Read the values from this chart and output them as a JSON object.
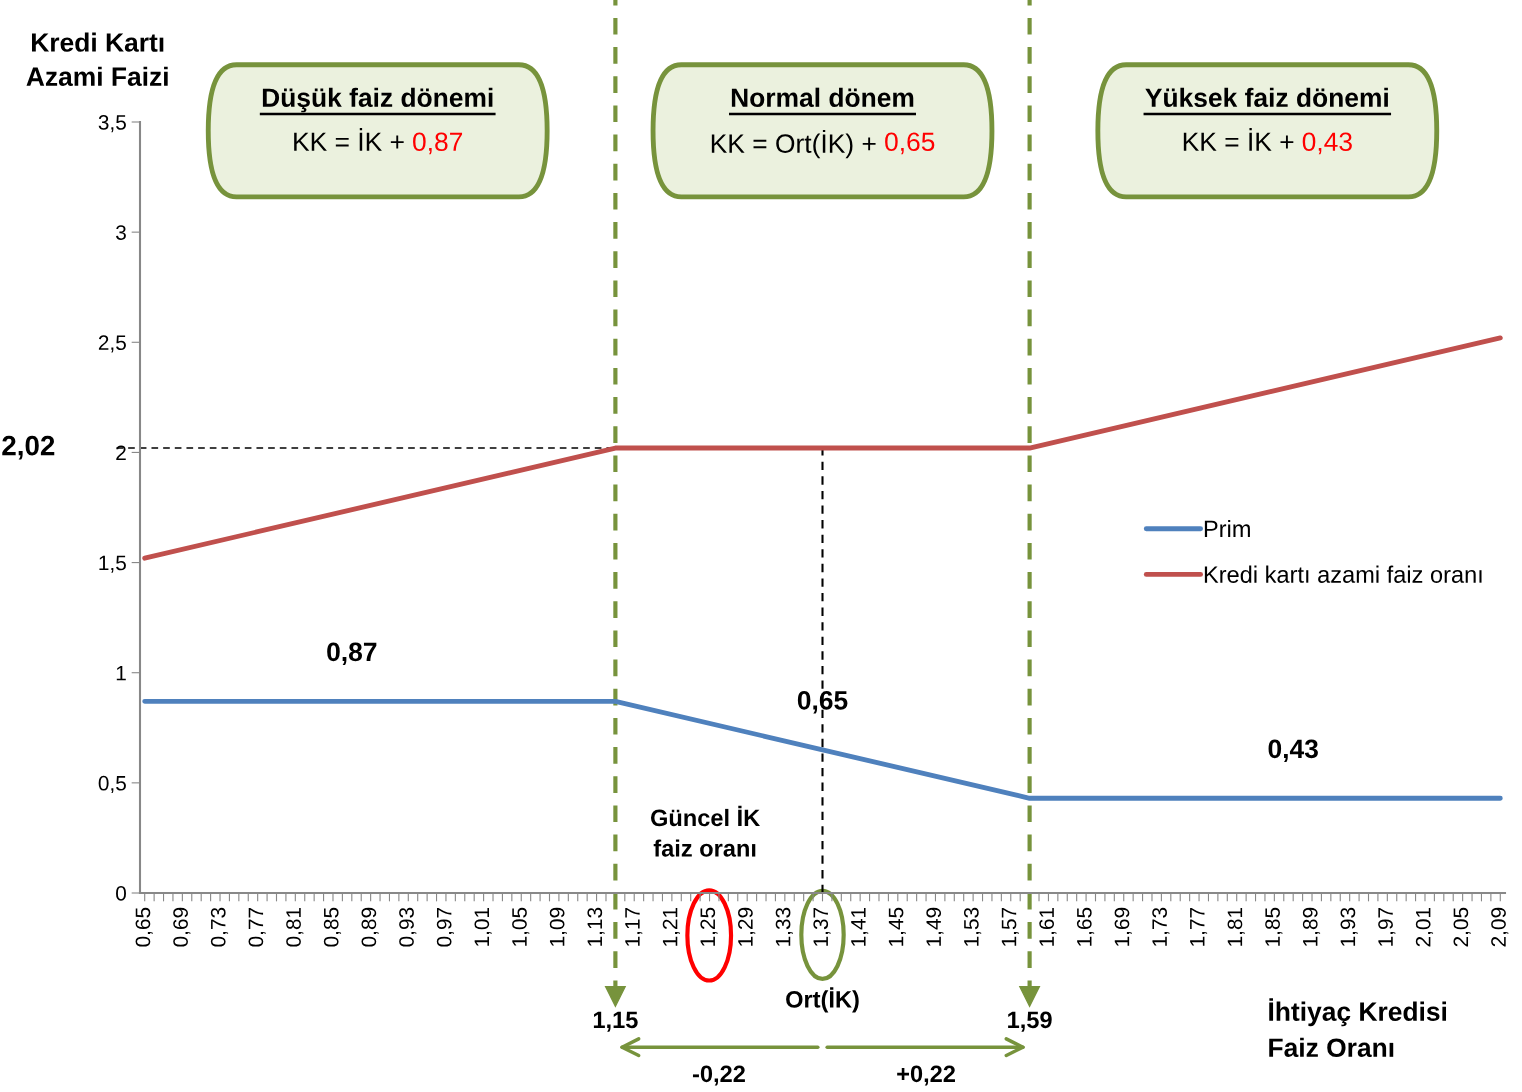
{
  "chart_data": {
    "type": "line",
    "xlabel": "İhtiyaç Kredisi\nFaiz Oranı",
    "ylabel": "Kredi Kartı\nAzami Faizi",
    "series": [
      {
        "name": "Prim",
        "color": "#4f81bd",
        "x": [
          0.65,
          1.15,
          1.59,
          2.09
        ],
        "values": [
          0.87,
          0.87,
          0.43,
          0.43
        ]
      },
      {
        "name": "Kredi kartı azami faiz oranı",
        "color": "#c0504d",
        "x": [
          0.65,
          1.15,
          1.59,
          2.09
        ],
        "values": [
          1.52,
          2.02,
          2.02,
          2.52
        ]
      }
    ],
    "xlim": [
      0.645,
      2.095
    ],
    "ylim": [
      0,
      3.5
    ],
    "yticks": [
      0,
      {
        "value": 0.5,
        "label": "0,5"
      },
      1,
      {
        "value": 1.5,
        "label": "1,5"
      },
      2,
      {
        "value": 2.5,
        "label": "2,5"
      },
      3,
      {
        "value": 3.5,
        "label": "3,5"
      }
    ],
    "xticks": [
      {
        "value": 0.65,
        "label": "0,65"
      },
      {
        "value": 0.66,
        "label": null
      },
      {
        "value": 0.67,
        "label": null
      },
      {
        "value": 0.68,
        "label": null
      },
      {
        "value": 0.69,
        "label": "0,69"
      },
      {
        "value": 0.7,
        "label": null
      },
      {
        "value": 0.71,
        "label": null
      },
      {
        "value": 0.72,
        "label": null
      },
      {
        "value": 0.73,
        "label": "0,73"
      },
      {
        "value": 0.74,
        "label": null
      },
      {
        "value": 0.75,
        "label": null
      },
      {
        "value": 0.76,
        "label": null
      },
      {
        "value": 0.77,
        "label": "0,77"
      },
      {
        "value": 0.78,
        "label": null
      },
      {
        "value": 0.79,
        "label": null
      },
      {
        "value": 0.8,
        "label": null
      },
      {
        "value": 0.81,
        "label": "0,81"
      },
      {
        "value": 0.82,
        "label": null
      },
      {
        "value": 0.83,
        "label": null
      },
      {
        "value": 0.84,
        "label": null
      },
      {
        "value": 0.85,
        "label": "0,85"
      },
      {
        "value": 0.86,
        "label": null
      },
      {
        "value": 0.87,
        "label": null
      },
      {
        "value": 0.88,
        "label": null
      },
      {
        "value": 0.89,
        "label": "0,89"
      },
      {
        "value": 0.9,
        "label": null
      },
      {
        "value": 0.91,
        "label": null
      },
      {
        "value": 0.92,
        "label": null
      },
      {
        "value": 0.93,
        "label": "0,93"
      },
      {
        "value": 0.94,
        "label": null
      },
      {
        "value": 0.95,
        "label": null
      },
      {
        "value": 0.96,
        "label": null
      },
      {
        "value": 0.97,
        "label": "0,97"
      },
      {
        "value": 0.98,
        "label": null
      },
      {
        "value": 0.99,
        "label": null
      },
      {
        "value": 1.0,
        "label": null
      },
      {
        "value": 1.01,
        "label": "1,01"
      },
      {
        "value": 1.02,
        "label": null
      },
      {
        "value": 1.03,
        "label": null
      },
      {
        "value": 1.04,
        "label": null
      },
      {
        "value": 1.05,
        "label": "1,05"
      },
      {
        "value": 1.06,
        "label": null
      },
      {
        "value": 1.07,
        "label": null
      },
      {
        "value": 1.08,
        "label": null
      },
      {
        "value": 1.09,
        "label": "1,09"
      },
      {
        "value": 1.1,
        "label": null
      },
      {
        "value": 1.11,
        "label": null
      },
      {
        "value": 1.12,
        "label": null
      },
      {
        "value": 1.13,
        "label": "1,13"
      },
      {
        "value": 1.14,
        "label": null
      },
      {
        "value": 1.15,
        "label": null
      },
      {
        "value": 1.16,
        "label": null
      },
      {
        "value": 1.17,
        "label": "1,17"
      },
      {
        "value": 1.18,
        "label": null
      },
      {
        "value": 1.19,
        "label": null
      },
      {
        "value": 1.2,
        "label": null
      },
      {
        "value": 1.21,
        "label": "1,21"
      },
      {
        "value": 1.22,
        "label": null
      },
      {
        "value": 1.23,
        "label": null
      },
      {
        "value": 1.24,
        "label": null
      },
      {
        "value": 1.25,
        "label": "1,25"
      },
      {
        "value": 1.26,
        "label": null
      },
      {
        "value": 1.27,
        "label": null
      },
      {
        "value": 1.28,
        "label": null
      },
      {
        "value": 1.29,
        "label": "1,29"
      },
      {
        "value": 1.3,
        "label": null
      },
      {
        "value": 1.31,
        "label": null
      },
      {
        "value": 1.32,
        "label": null
      },
      {
        "value": 1.33,
        "label": "1,33"
      },
      {
        "value": 1.34,
        "label": null
      },
      {
        "value": 1.35,
        "label": null
      },
      {
        "value": 1.36,
        "label": null
      },
      {
        "value": 1.37,
        "label": "1,37"
      },
      {
        "value": 1.38,
        "label": null
      },
      {
        "value": 1.39,
        "label": null
      },
      {
        "value": 1.4,
        "label": null
      },
      {
        "value": 1.41,
        "label": "1,41"
      },
      {
        "value": 1.42,
        "label": null
      },
      {
        "value": 1.43,
        "label": null
      },
      {
        "value": 1.44,
        "label": null
      },
      {
        "value": 1.45,
        "label": "1,45"
      },
      {
        "value": 1.46,
        "label": null
      },
      {
        "value": 1.47,
        "label": null
      },
      {
        "value": 1.48,
        "label": null
      },
      {
        "value": 1.49,
        "label": "1,49"
      },
      {
        "value": 1.5,
        "label": null
      },
      {
        "value": 1.51,
        "label": null
      },
      {
        "value": 1.52,
        "label": null
      },
      {
        "value": 1.53,
        "label": "1,53"
      },
      {
        "value": 1.54,
        "label": null
      },
      {
        "value": 1.55,
        "label": null
      },
      {
        "value": 1.56,
        "label": null
      },
      {
        "value": 1.57,
        "label": "1,57"
      },
      {
        "value": 1.58,
        "label": null
      },
      {
        "value": 1.59,
        "label": null
      },
      {
        "value": 1.6,
        "label": null
      },
      {
        "value": 1.61,
        "label": "1,61"
      },
      {
        "value": 1.62,
        "label": null
      },
      {
        "value": 1.63,
        "label": null
      },
      {
        "value": 1.64,
        "label": null
      },
      {
        "value": 1.65,
        "label": "1,65"
      },
      {
        "value": 1.66,
        "label": null
      },
      {
        "value": 1.67,
        "label": null
      },
      {
        "value": 1.68,
        "label": null
      },
      {
        "value": 1.69,
        "label": "1,69"
      },
      {
        "value": 1.7,
        "label": null
      },
      {
        "value": 1.71,
        "label": null
      },
      {
        "value": 1.72,
        "label": null
      },
      {
        "value": 1.73,
        "label": "1,73"
      },
      {
        "value": 1.74,
        "label": null
      },
      {
        "value": 1.75,
        "label": null
      },
      {
        "value": 1.76,
        "label": null
      },
      {
        "value": 1.77,
        "label": "1,77"
      },
      {
        "value": 1.78,
        "label": null
      },
      {
        "value": 1.79,
        "label": null
      },
      {
        "value": 1.8,
        "label": null
      },
      {
        "value": 1.81,
        "label": "1,81"
      },
      {
        "value": 1.82,
        "label": null
      },
      {
        "value": 1.83,
        "label": null
      },
      {
        "value": 1.84,
        "label": null
      },
      {
        "value": 1.85,
        "label": "1,85"
      },
      {
        "value": 1.86,
        "label": null
      },
      {
        "value": 1.87,
        "label": null
      },
      {
        "value": 1.88,
        "label": null
      },
      {
        "value": 1.89,
        "label": "1,89"
      },
      {
        "value": 1.9,
        "label": null
      },
      {
        "value": 1.91,
        "label": null
      },
      {
        "value": 1.92,
        "label": null
      },
      {
        "value": 1.93,
        "label": "1,93"
      },
      {
        "value": 1.94,
        "label": null
      },
      {
        "value": 1.95,
        "label": null
      },
      {
        "value": 1.96,
        "label": null
      },
      {
        "value": 1.97,
        "label": "1,97"
      },
      {
        "value": 1.98,
        "label": null
      },
      {
        "value": 1.99,
        "label": null
      },
      {
        "value": 2.0,
        "label": null
      },
      {
        "value": 2.01,
        "label": "2,01"
      },
      {
        "value": 2.02,
        "label": null
      },
      {
        "value": 2.03,
        "label": null
      },
      {
        "value": 2.04,
        "label": null
      },
      {
        "value": 2.05,
        "label": "2,05"
      },
      {
        "value": 2.06,
        "label": null
      },
      {
        "value": 2.07,
        "label": null
      },
      {
        "value": 2.08,
        "label": null
      },
      {
        "value": 2.09,
        "label": "2,09"
      }
    ],
    "ref_lines": [
      {
        "axis": "x",
        "value": 1.15,
        "label": "1,15",
        "color": "#77933c",
        "line_style": "dashed"
      },
      {
        "axis": "x",
        "value": 1.59,
        "label": "1,59",
        "color": "#77933c",
        "line_style": "dashed"
      },
      {
        "axis": "x",
        "value": 1.37,
        "color": "#000000",
        "line_style": "dashed"
      },
      {
        "axis": "y",
        "value": 2.02,
        "label": "2,02",
        "color": "#000000",
        "line_style": "dashed"
      }
    ],
    "annotations": [
      "Düşük faiz dönemi",
      "KK = İK + 0,87",
      "Normal dönem",
      "KK = Ort(İK) + 0,65",
      "Yüksek faiz dönemi",
      "KK = İK + 0,43",
      {
        "text": "0,87",
        "x": 0.87,
        "y": 0.87
      },
      {
        "text": "0,65",
        "x": 1.37,
        "y": 0.65
      },
      {
        "text": "0,43",
        "x": 1.87,
        "y": 0.43
      },
      "Güncel İK\nfaiz oranı",
      "Ort(İK)",
      "-0,22",
      "+0,22"
    ],
    "legend": "right",
    "grid": false,
    "marker": "none",
    "line_style": "solid"
  }
}
